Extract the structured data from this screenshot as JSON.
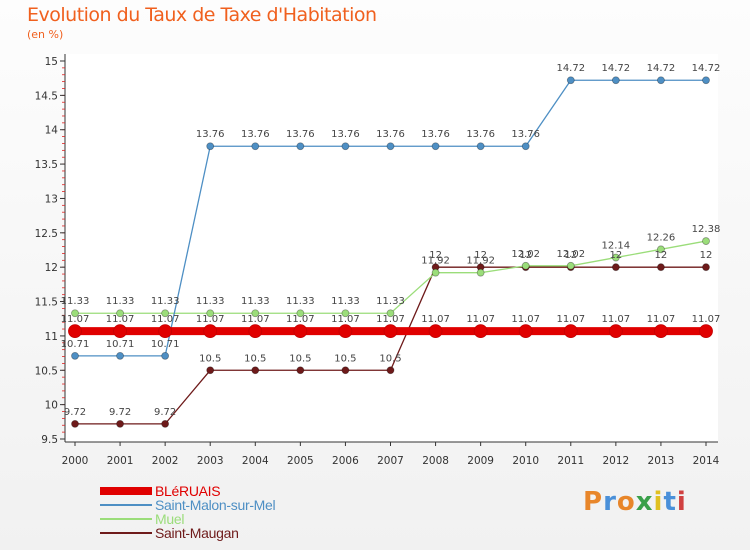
{
  "chart_data": {
    "type": "line",
    "title": "Evolution du Taux de Taxe d'Habitation",
    "ylabel": "(en %)",
    "xlabel": "",
    "x": [
      "2000",
      "2001",
      "2002",
      "2003",
      "2004",
      "2005",
      "2006",
      "2007",
      "2008",
      "2009",
      "2010",
      "2011",
      "2012",
      "2013",
      "2014"
    ],
    "ylim": [
      9.5,
      15
    ],
    "yticks": [
      9.5,
      10,
      10.5,
      11,
      11.5,
      12,
      12.5,
      13,
      13.5,
      14,
      14.5,
      15
    ],
    "grid": false,
    "legend_position": "bottom-left",
    "series": [
      {
        "name": "BLéRUAIS",
        "color": "#e00000",
        "values": [
          11.07,
          11.07,
          11.07,
          11.07,
          11.07,
          11.07,
          11.07,
          11.07,
          11.07,
          11.07,
          11.07,
          11.07,
          11.07,
          11.07,
          11.07
        ]
      },
      {
        "name": "Saint-Malon-sur-Mel",
        "color": "#4e8fc4",
        "values": [
          10.71,
          10.71,
          10.71,
          13.76,
          13.76,
          13.76,
          13.76,
          13.76,
          13.76,
          13.76,
          13.76,
          14.72,
          14.72,
          14.72,
          14.72
        ]
      },
      {
        "name": "Muel",
        "color": "#9bdd7a",
        "values": [
          11.33,
          11.33,
          11.33,
          11.33,
          11.33,
          11.33,
          11.33,
          11.33,
          11.92,
          11.92,
          12.02,
          12.02,
          12.14,
          12.26,
          12.38
        ]
      },
      {
        "name": "Saint-Maugan",
        "color": "#6e1a1a",
        "values": [
          9.72,
          9.72,
          9.72,
          10.5,
          10.5,
          10.5,
          10.5,
          10.5,
          12,
          12,
          12,
          12,
          12,
          12,
          12
        ]
      }
    ]
  },
  "logo": {
    "letters": [
      "P",
      "r",
      "o",
      "x",
      "i",
      "t",
      "i"
    ],
    "colors": [
      "#e8862a",
      "#4a90d9",
      "#e8862a",
      "#3aa04a",
      "#e0c020",
      "#4a90d9",
      "#d04040"
    ]
  }
}
